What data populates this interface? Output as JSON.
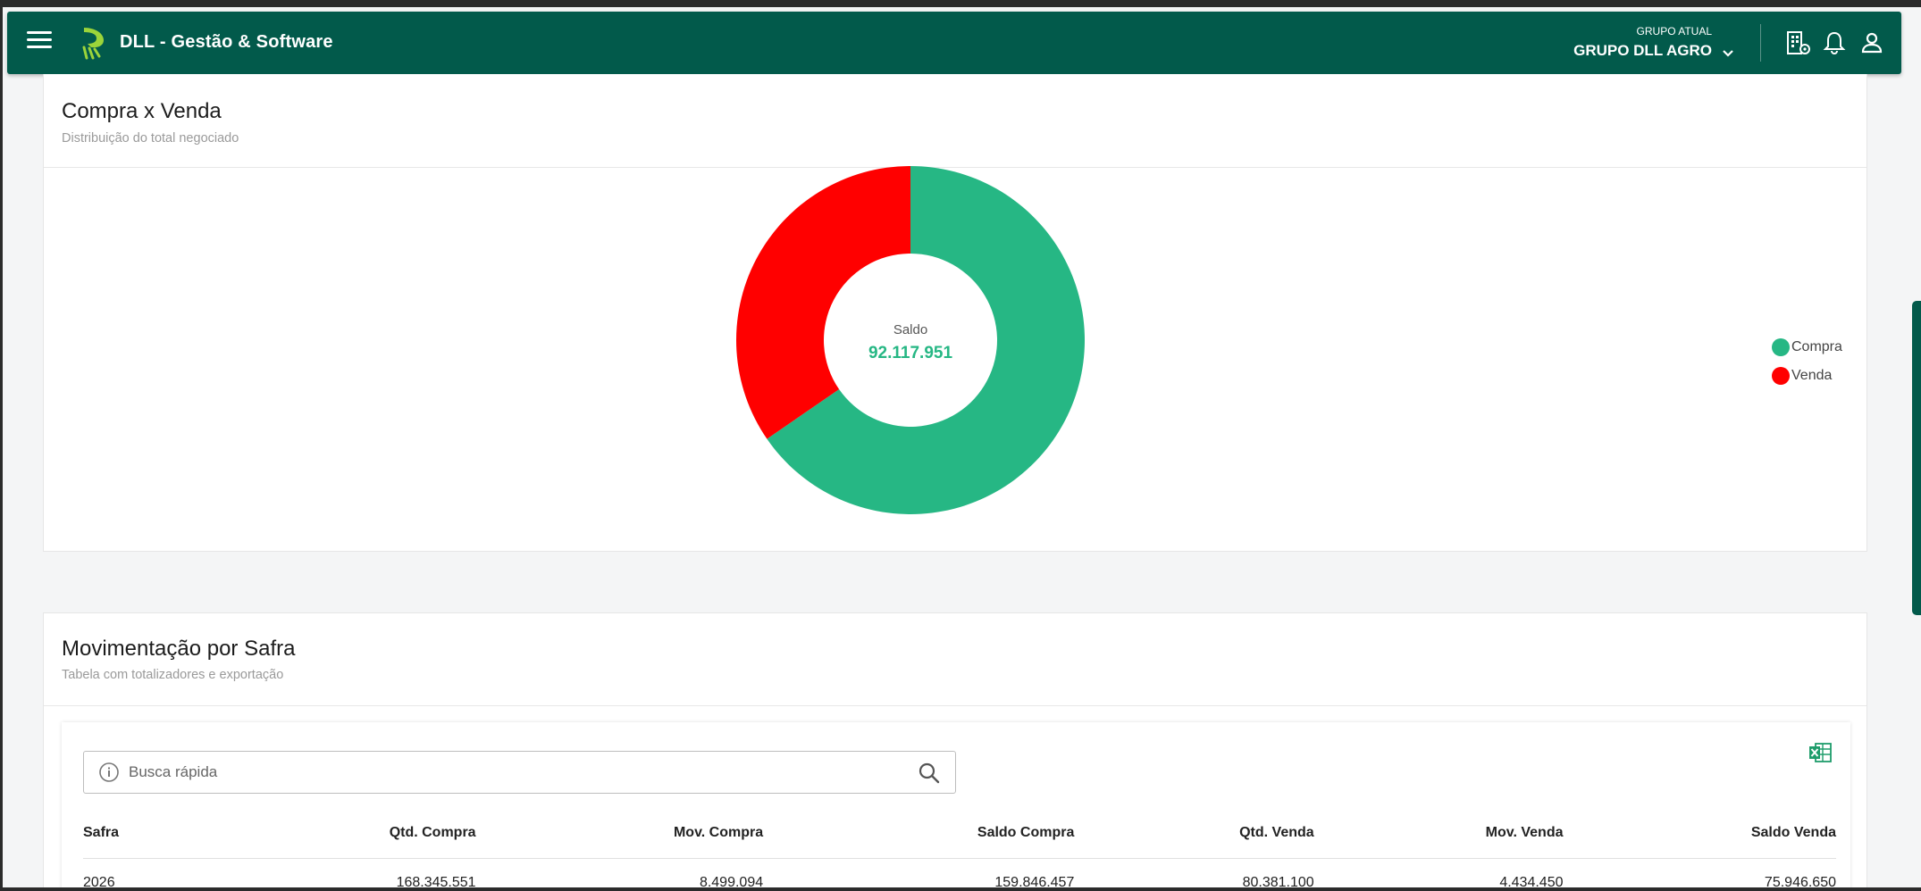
{
  "header": {
    "app_title": "DLL - Gestão & Software",
    "group_label": "GRUPO ATUAL",
    "group_value": "GRUPO DLL AGRO",
    "icons": [
      "menu-icon",
      "building-settings-icon",
      "bell-icon",
      "user-icon"
    ]
  },
  "compra_venda": {
    "title": "Compra x Venda",
    "subtitle": "Distribuição do total negociado",
    "center_label": "Saldo",
    "center_value": "92.117.951",
    "chart_data": {
      "type": "pie",
      "donut": true,
      "series": [
        {
          "name": "Compra",
          "value": 65.4,
          "color": "#26b784"
        },
        {
          "name": "Venda",
          "value": 34.6,
          "color": "#ff0000"
        }
      ],
      "legend_position": "right"
    },
    "legend": [
      {
        "label": "Compra",
        "color": "#26b784"
      },
      {
        "label": "Venda",
        "color": "#ff0000"
      }
    ]
  },
  "movimentacao": {
    "title": "Movimentação por Safra",
    "subtitle": "Tabela com totalizadores e exportação",
    "search_placeholder": "Busca rápida",
    "columns": [
      "Safra",
      "Qtd. Compra",
      "Mov. Compra",
      "Saldo Compra",
      "Qtd. Venda",
      "Mov. Venda",
      "Saldo Venda"
    ],
    "rows": [
      [
        "2026",
        "168.345.551",
        "8.499.094",
        "159.846.457",
        "80.381.100",
        "4.434.450",
        "75.946.650"
      ]
    ]
  },
  "colors": {
    "brand": "#025a4b",
    "compra": "#26b784",
    "venda": "#ff0000",
    "saldo_value": "#26b784"
  }
}
